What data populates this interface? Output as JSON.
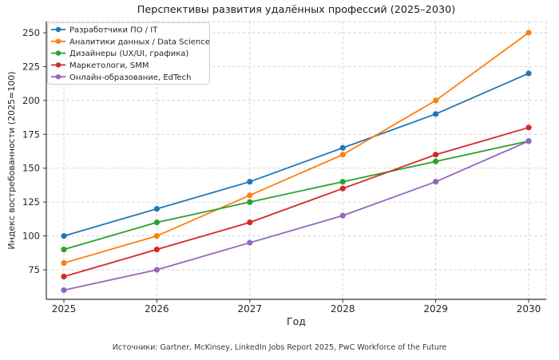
{
  "figure": {
    "title": "Перспективы развития удалённых профессий (2025–2030)",
    "xlabel": "Год",
    "ylabel": "Индекс востребованности (2025=100)",
    "source_note": "Источники: Gartner, McKinsey, LinkedIn Jobs Report 2025, PwC Workforce of the Future"
  },
  "chart_data": {
    "type": "line",
    "title": "Перспективы развития удалённых профессий (2025–2030)",
    "xlabel": "Год",
    "ylabel": "Индекс востребованности (2025=100)",
    "x": [
      2025,
      2026,
      2027,
      2028,
      2029,
      2030
    ],
    "yticks": [
      75,
      100,
      125,
      150,
      175,
      200,
      225,
      250
    ],
    "ylim": [
      53,
      258
    ],
    "grid": true,
    "grid_style": "dashed",
    "legend_position": "upper left",
    "series": [
      {
        "name": "Разработчики ПО / IT",
        "color": "#1f77b4",
        "values": [
          100,
          120,
          140,
          165,
          190,
          220
        ]
      },
      {
        "name": "Аналитики данных / Data Science",
        "color": "#ff7f0e",
        "values": [
          80,
          100,
          130,
          160,
          200,
          250
        ]
      },
      {
        "name": "Дизайнеры (UX/UI, графика)",
        "color": "#2ca02c",
        "values": [
          90,
          110,
          125,
          140,
          155,
          170
        ]
      },
      {
        "name": "Маркетологи, SMM",
        "color": "#d62728",
        "values": [
          70,
          90,
          110,
          135,
          160,
          180
        ]
      },
      {
        "name": "Онлайн-образование, EdTech",
        "color": "#9467bd",
        "values": [
          60,
          75,
          95,
          115,
          140,
          170
        ]
      }
    ],
    "colors": {
      "grid": "#d0d0d0",
      "spine": "#333333",
      "tick_text": "#262626",
      "legend_border": "#cccccc",
      "legend_bg": "rgba(255,255,255,0.88)"
    }
  }
}
